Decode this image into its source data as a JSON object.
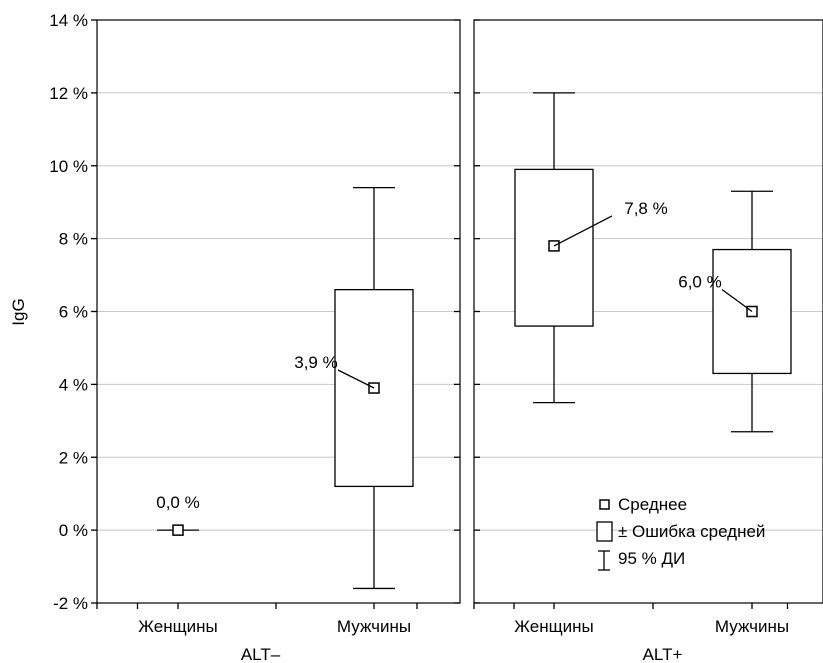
{
  "chart_data": {
    "type": "box",
    "ylabel": "IgG",
    "yticks": [
      "14 %",
      "12 %",
      "10 %",
      "8 %",
      "6 %",
      "4 %",
      "2 %",
      "0 %",
      "-2 %"
    ],
    "ylim": [
      -2,
      14
    ],
    "grid": true,
    "panels": [
      {
        "label": "ALT–",
        "groups": [
          {
            "category": "Женщины",
            "mean": 0.0,
            "se_low": 0.0,
            "se_high": 0.0,
            "ci_low": 0.0,
            "ci_high": 0.0,
            "label": "0,0 %"
          },
          {
            "category": "Мужчины",
            "mean": 3.9,
            "se_low": 1.2,
            "se_high": 6.6,
            "ci_low": -1.6,
            "ci_high": 9.4,
            "label": "3,9 %"
          }
        ]
      },
      {
        "label": "ALT+",
        "groups": [
          {
            "category": "Женщины",
            "mean": 7.8,
            "se_low": 5.6,
            "se_high": 9.9,
            "ci_low": 3.5,
            "ci_high": 12.0,
            "label": "7,8 %"
          },
          {
            "category": "Мужчины",
            "mean": 6.0,
            "se_low": 4.3,
            "se_high": 7.7,
            "ci_low": 2.7,
            "ci_high": 9.3,
            "label": "6,0 %"
          }
        ]
      }
    ],
    "legend": {
      "placement": "bottom-right",
      "items": [
        "Среднее",
        "± Ошибка средней",
        "95 % ДИ"
      ]
    }
  }
}
